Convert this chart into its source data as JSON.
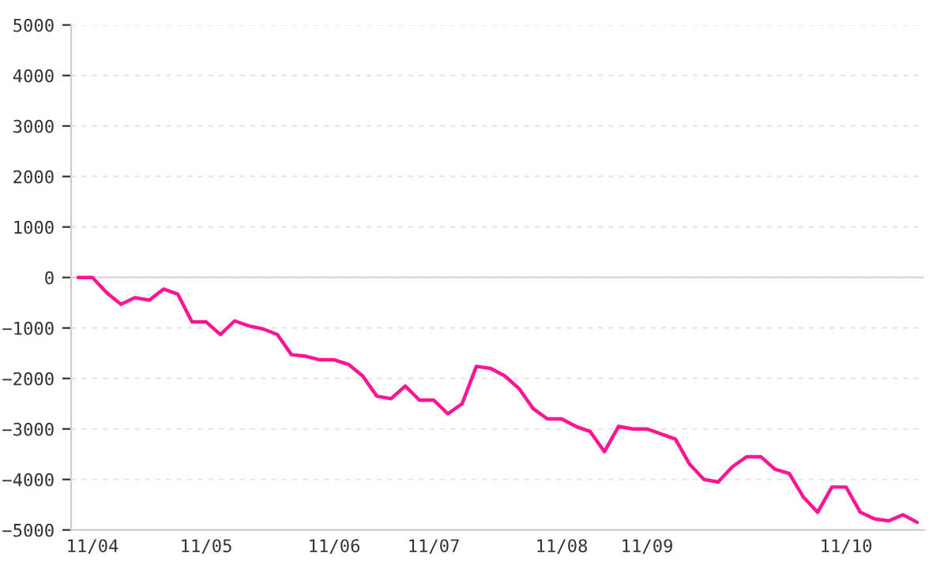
{
  "chart_data": {
    "type": "line",
    "categories": [
      null,
      "11/04",
      null,
      null,
      null,
      null,
      null,
      null,
      null,
      "11/05",
      null,
      null,
      null,
      null,
      null,
      null,
      null,
      null,
      "11/06",
      null,
      null,
      null,
      null,
      null,
      null,
      "11/07",
      null,
      null,
      null,
      null,
      null,
      null,
      null,
      null,
      "11/08",
      null,
      null,
      null,
      null,
      null,
      "11/09",
      null,
      null,
      null,
      null,
      null,
      null,
      null,
      null,
      null,
      null,
      null,
      null,
      null,
      "11/10",
      null,
      null,
      null,
      null,
      null
    ],
    "series": [
      {
        "color": "#ff1493",
        "values": [
          0,
          0,
          -300,
          -530,
          -400,
          -450,
          -230,
          -330,
          -880,
          -880,
          -1130,
          -860,
          -960,
          -1020,
          -1130,
          -1530,
          -1560,
          -1630,
          -1630,
          -1720,
          -1950,
          -2350,
          -2400,
          -2150,
          -2430,
          -2430,
          -2700,
          -2500,
          -1760,
          -1800,
          -1950,
          -2200,
          -2600,
          -2800,
          -2800,
          -2950,
          -3050,
          -3450,
          -2950,
          -3000,
          -3000,
          -3100,
          -3200,
          -3700,
          -4000,
          -4050,
          -3750,
          -3550,
          -3550,
          -3800,
          -3880,
          -4350,
          -4650,
          -4150,
          -4150,
          -4650,
          -4780,
          -4820,
          -4700,
          -4850
        ]
      }
    ],
    "ylim": [
      -5000,
      5000
    ],
    "yticks": [
      -5000,
      -4000,
      -3000,
      -2000,
      -1000,
      0,
      1000,
      2000,
      3000,
      4000,
      5000
    ],
    "grid": "y",
    "ref_lines": [
      {
        "axis": "y",
        "value": 0,
        "color": "#dddddd"
      }
    ],
    "marker": "none",
    "line_style": "solid"
  }
}
